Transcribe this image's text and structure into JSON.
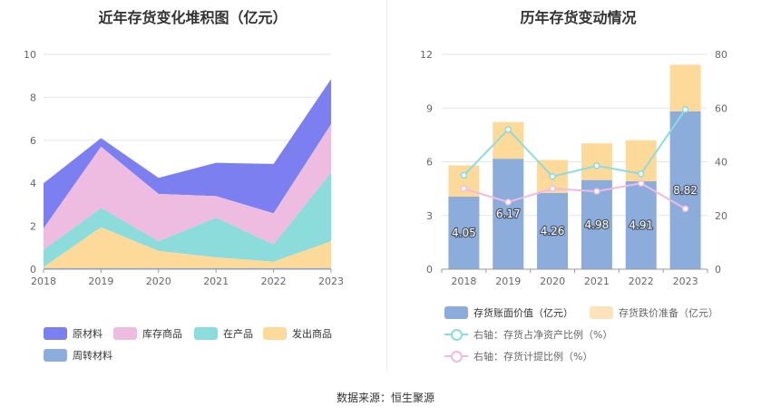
{
  "left_chart": {
    "title": "近年存货变化堆积图（亿元）",
    "legend": [
      {
        "label": "原材料",
        "color": "#7b7ff0"
      },
      {
        "label": "库存商品",
        "color": "#eebce0"
      },
      {
        "label": "在产品",
        "color": "#8ddcdc"
      },
      {
        "label": "发出商品",
        "color": "#fdd99a"
      },
      {
        "label": "周转材料",
        "color": "#8cacdc"
      }
    ]
  },
  "right_chart": {
    "title": "历年存货变动情况",
    "legend": [
      {
        "label": "存货账面价值（亿元）",
        "color": "#8cacdc",
        "kind": "bar"
      },
      {
        "label": "存货跌价准备（亿元）",
        "color": "#fde3bc",
        "kind": "bar"
      },
      {
        "label": "右轴：存货占净资产比例（%）",
        "color": "#8ddcdc",
        "kind": "line"
      },
      {
        "label": "右轴：存货计提比例（%）",
        "color": "#eebce0",
        "kind": "line"
      }
    ]
  },
  "source": "数据来源：恒生聚源",
  "chart_data": [
    {
      "type": "area",
      "stacked": true,
      "title": "近年存货变化堆积图（亿元）",
      "x": [
        "2018",
        "2019",
        "2020",
        "2021",
        "2022",
        "2023"
      ],
      "ylim": [
        0,
        10
      ],
      "yticks": [
        0,
        2,
        4,
        6,
        8,
        10
      ],
      "series": [
        {
          "name": "周转材料",
          "values": [
            0.05,
            0.05,
            0.05,
            0.05,
            0.05,
            0.05
          ],
          "color": "#8cacdc"
        },
        {
          "name": "发出商品",
          "values": [
            0.05,
            1.9,
            0.8,
            0.5,
            0.3,
            1.25
          ],
          "color": "#fdd99a"
        },
        {
          "name": "在产品",
          "values": [
            0.8,
            0.9,
            0.45,
            1.85,
            0.8,
            3.2
          ],
          "color": "#8ddcdc"
        },
        {
          "name": "库存商品",
          "values": [
            1.0,
            2.85,
            2.2,
            1.0,
            1.45,
            2.25
          ],
          "color": "#eebce0"
        },
        {
          "name": "原材料",
          "values": [
            2.1,
            0.4,
            0.75,
            1.55,
            2.3,
            2.1
          ],
          "color": "#7b7ff0"
        }
      ]
    },
    {
      "type": "bar",
      "stacked": true,
      "title": "历年存货变动情况",
      "categories": [
        "2018",
        "2019",
        "2020",
        "2021",
        "2022",
        "2023"
      ],
      "ylim": [
        0,
        12
      ],
      "yticks": [
        0,
        3,
        6,
        9,
        12
      ],
      "y2lim": [
        0,
        80
      ],
      "y2ticks": [
        0,
        20,
        40,
        60,
        80
      ],
      "series": [
        {
          "name": "存货账面价值（亿元）",
          "values": [
            4.05,
            6.17,
            4.26,
            4.98,
            4.91,
            8.82
          ],
          "labels": [
            "4.05",
            "6.17",
            "4.26",
            "4.98",
            "4.91",
            "8.82"
          ],
          "color": "#8cacdc",
          "axis": "left"
        },
        {
          "name": "存货跌价准备（亿元）",
          "values": [
            1.75,
            2.05,
            1.84,
            2.05,
            2.29,
            2.6
          ],
          "color": "#fdd99a",
          "axis": "left"
        },
        {
          "name": "右轴：存货占净资产比例（%）",
          "type": "line",
          "values": [
            35,
            52,
            34.5,
            38.5,
            35.5,
            59.5
          ],
          "color": "#8ddcdc",
          "axis": "right"
        },
        {
          "name": "右轴：存货计提比例（%）",
          "type": "line",
          "values": [
            30,
            25,
            30,
            29,
            32,
            22.5
          ],
          "color": "#eebce0",
          "axis": "right"
        }
      ]
    }
  ]
}
